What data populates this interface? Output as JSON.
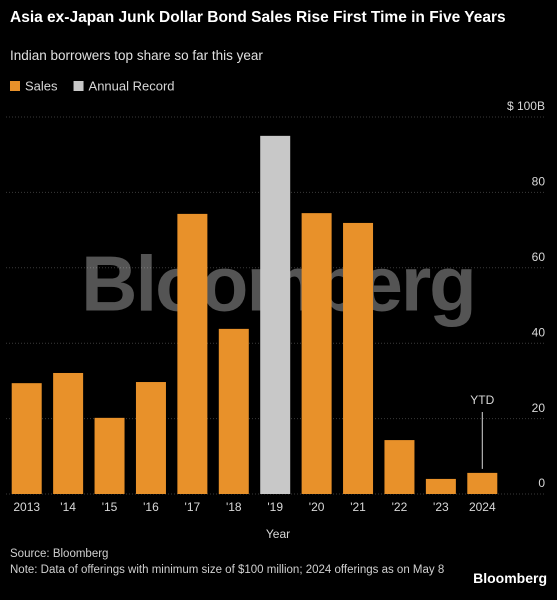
{
  "chart_data": {
    "type": "bar",
    "title": "Asia ex-Japan Junk Dollar Bond Sales Rise First Time in Five Years",
    "subtitle": "Indian borrowers top share so far this year",
    "categories": [
      "2013",
      "'14",
      "'15",
      "'16",
      "'17",
      "'18",
      "'19",
      "'20",
      "'21",
      "'22",
      "'23",
      "2024"
    ],
    "series": [
      {
        "name": "Sales",
        "color": "#e8912a",
        "values": [
          29.4,
          32.1,
          20.2,
          29.7,
          74.3,
          43.8,
          null,
          74.5,
          71.9,
          14.3,
          4.0,
          5.6
        ]
      },
      {
        "name": "Annual Record",
        "color": "#c8c8c8",
        "values": [
          null,
          null,
          null,
          null,
          null,
          null,
          95,
          null,
          null,
          null,
          null,
          null
        ]
      }
    ],
    "ylim": [
      0,
      100
    ],
    "yticks": [
      0,
      20,
      40,
      60,
      80,
      {
        "value": 100,
        "label": "$ 100B"
      }
    ],
    "grid": true,
    "xlabel": "Year",
    "annotation": {
      "text": "YTD",
      "category": 11
    },
    "watermark": "Bloomberg",
    "source": "Source: Bloomberg",
    "note": "Note: Data of offerings with minimum size of $100 million; 2024 offerings as on May 8",
    "logo": "Bloomberg"
  }
}
